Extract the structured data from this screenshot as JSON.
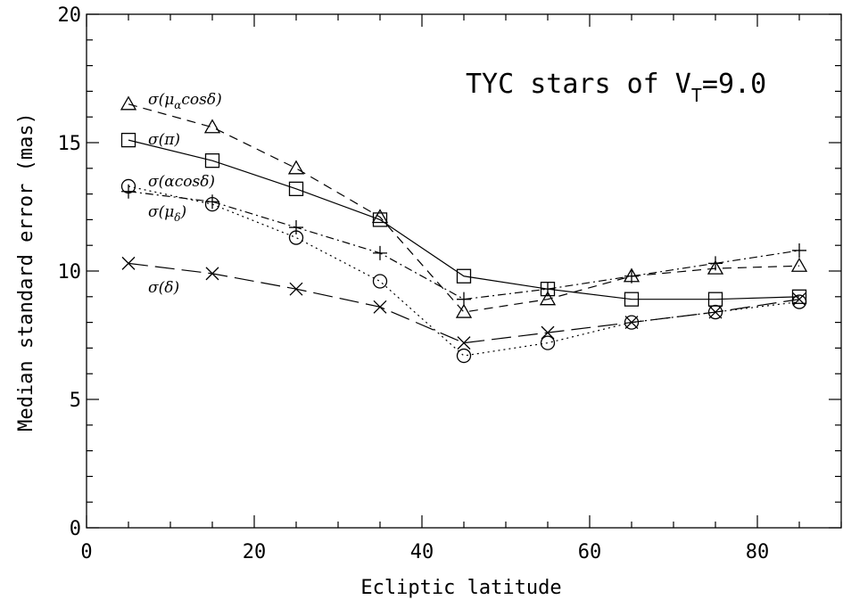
{
  "chart_data": {
    "type": "line",
    "annotation": {
      "main": "TYC stars of V",
      "sub": "T",
      "tail": "=9.0"
    },
    "xlabel": "Ecliptic latitude",
    "ylabel": "Median standard error (mas)",
    "xlim": [
      0,
      90
    ],
    "ylim": [
      0,
      20
    ],
    "x_ticks": [
      0,
      20,
      40,
      60,
      80
    ],
    "y_ticks": [
      0,
      5,
      10,
      15,
      20
    ],
    "grid": false,
    "x": [
      5,
      15,
      25,
      35,
      45,
      55,
      65,
      75,
      85
    ],
    "series": [
      {
        "name": "σ(μαcosδ)",
        "label_parts": [
          {
            "t": "σ(μ"
          },
          {
            "t": "α",
            "sub": true
          },
          {
            "t": "cosδ)"
          }
        ],
        "marker": "triangle",
        "dash": "10,7",
        "values": [
          16.5,
          15.6,
          14.0,
          12.1,
          8.4,
          8.9,
          9.8,
          10.1,
          10.2
        ]
      },
      {
        "name": "σ(π)",
        "label_parts": [
          {
            "t": "σ(π)"
          }
        ],
        "marker": "square",
        "dash": "",
        "values": [
          15.1,
          14.3,
          13.2,
          12.0,
          9.8,
          9.3,
          8.9,
          8.9,
          9.0
        ]
      },
      {
        "name": "σ(αcosδ)",
        "label_parts": [
          {
            "t": "σ(αcosδ)"
          }
        ],
        "marker": "circle",
        "dash": "2,4",
        "values": [
          13.3,
          12.6,
          11.3,
          9.6,
          6.7,
          7.2,
          8.0,
          8.4,
          8.8
        ]
      },
      {
        "name": "σ(μδ)",
        "label_parts": [
          {
            "t": "σ(μ"
          },
          {
            "t": "δ",
            "sub": true
          },
          {
            "t": ")"
          }
        ],
        "marker": "plus",
        "dash": "9,4,2,4",
        "values": [
          13.1,
          12.7,
          11.7,
          10.7,
          8.9,
          9.3,
          9.8,
          10.3,
          10.8
        ]
      },
      {
        "name": "σ(δ)",
        "label_parts": [
          {
            "t": "σ(δ)"
          }
        ],
        "marker": "x",
        "dash": "22,8",
        "values": [
          10.3,
          9.9,
          9.3,
          8.6,
          7.2,
          7.6,
          8.0,
          8.4,
          8.9
        ]
      }
    ]
  }
}
